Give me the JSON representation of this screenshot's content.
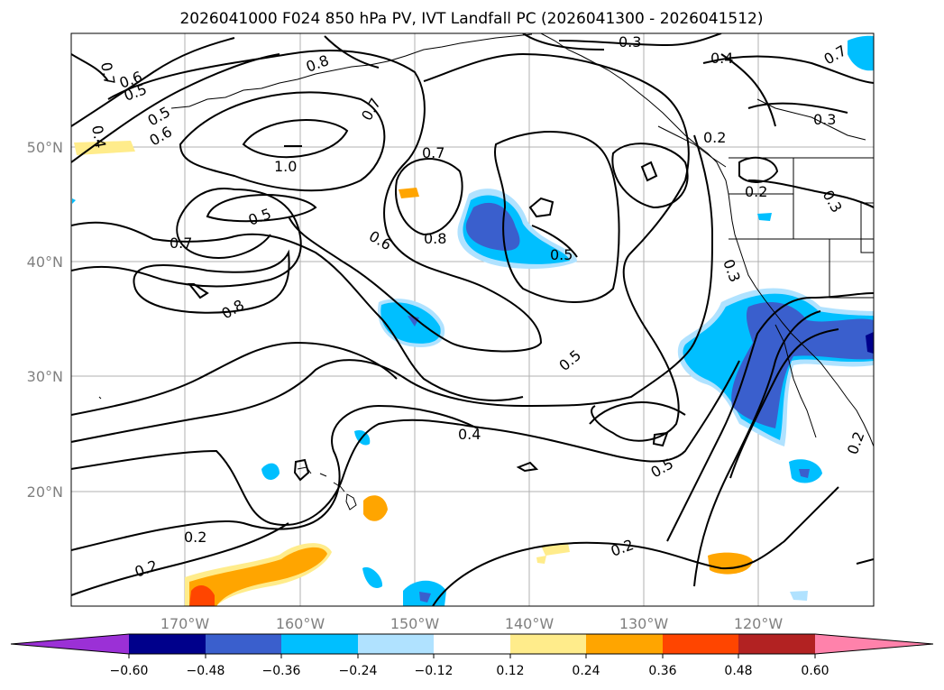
{
  "title": "2026041000 F024 850 hPa PV, IVT Landfall PC (2026041300 - 2026041512)",
  "map": {
    "lon_ticks": [
      "170°W",
      "160°W",
      "150°W",
      "140°W",
      "130°W",
      "120°W"
    ],
    "lat_ticks": [
      "50°N",
      "40°N",
      "30°N",
      "20°N"
    ],
    "contour_labels": [
      "0.7",
      "0.6",
      "0.5",
      "0.5",
      "0.6",
      "0.4",
      "0.8",
      "0.7",
      "0.3",
      "0.4",
      "0.7",
      "0.2",
      "0.3",
      "1.0",
      "0.7",
      "0.5",
      "0.6",
      "0.8",
      "0.7",
      "0.8",
      "0.5",
      "0.2",
      "0.3",
      "0.3",
      "0.5",
      "0.4",
      "0.5",
      "0.2",
      "0.2",
      "0.2",
      "0.2"
    ],
    "colors": {
      "contour": "#000000",
      "grid": "#b0b0b0",
      "coast": "#000000"
    }
  },
  "colorbar": {
    "ticks": [
      "−0.60",
      "−0.48",
      "−0.36",
      "−0.24",
      "−0.12",
      "0.12",
      "0.24",
      "0.36",
      "0.48",
      "0.60"
    ],
    "colors": [
      "#9b30d6",
      "#00008b",
      "#3a5fcd",
      "#00bfff",
      "#b0e2ff",
      "#ffffff",
      "#ffec8b",
      "#ffa500",
      "#ff4500",
      "#b22222",
      "#ff82ab"
    ]
  }
}
